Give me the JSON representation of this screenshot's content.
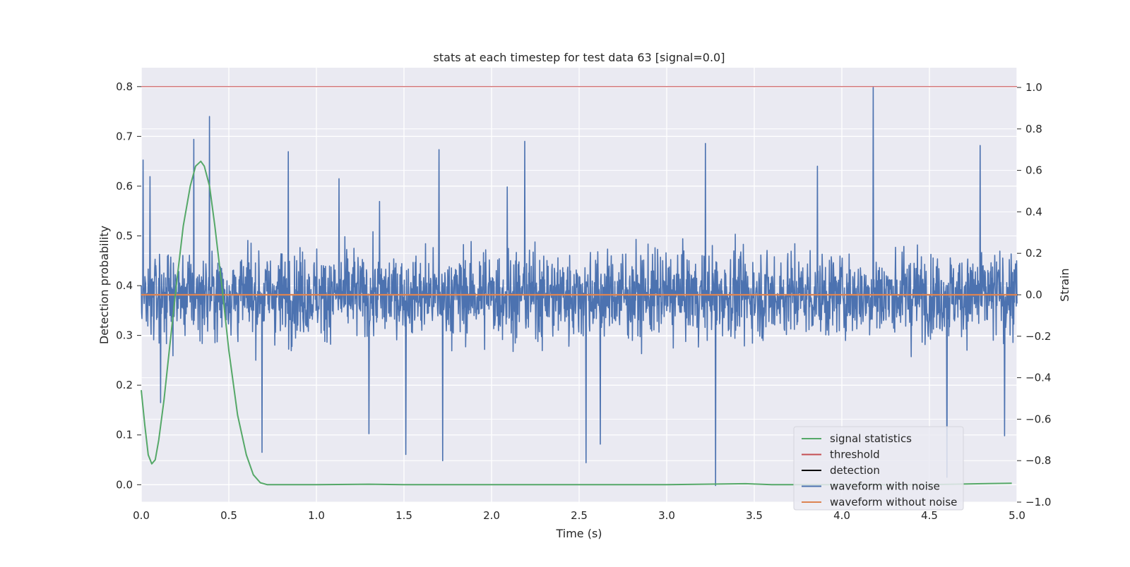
{
  "chart_data": {
    "type": "line",
    "title": "stats at each timestep for test data 63 [signal=0.0]",
    "xlabel": "Time (s)",
    "ylabel_left": "Detection probability",
    "ylabel_right": "Strain",
    "xlim": [
      0.0,
      5.0
    ],
    "ylim_left": [
      -0.035,
      0.838
    ],
    "ylim_right": [
      -1.0,
      1.0
    ],
    "grid": true,
    "legend_position": "lower-right",
    "xticks": [
      "0.0",
      "0.5",
      "1.0",
      "1.5",
      "2.0",
      "2.5",
      "3.0",
      "3.5",
      "4.0",
      "4.5",
      "5.0"
    ],
    "yticks_left": [
      "0.0",
      "0.1",
      "0.2",
      "0.3",
      "0.4",
      "0.5",
      "0.6",
      "0.7",
      "0.8"
    ],
    "yticks_right": [
      "−1.0",
      "−0.8",
      "−0.6",
      "−0.4",
      "−0.2",
      "0.0",
      "0.2",
      "0.4",
      "0.6",
      "0.8",
      "1.0"
    ],
    "colors": {
      "signal_statistics": "#55a868",
      "threshold": "#c44e52",
      "detection": "#000000",
      "waveform_with_noise": "#4c72b0",
      "waveform_without_noise": "#dd8452",
      "axes_background": "#eaeaf2",
      "grid": "#ffffff"
    },
    "legend": [
      {
        "key": "signal_statistics",
        "label": "signal statistics"
      },
      {
        "key": "threshold",
        "label": "threshold"
      },
      {
        "key": "detection",
        "label": "detection"
      },
      {
        "key": "waveform_with_noise",
        "label": "waveform with noise"
      },
      {
        "key": "waveform_without_noise",
        "label": "waveform without noise"
      }
    ],
    "series": [
      {
        "name": "signal statistics",
        "axis": "left",
        "x": [
          0.0,
          0.02,
          0.04,
          0.06,
          0.08,
          0.1,
          0.13,
          0.16,
          0.2,
          0.24,
          0.28,
          0.31,
          0.34,
          0.36,
          0.39,
          0.42,
          0.46,
          0.5,
          0.55,
          0.6,
          0.64,
          0.68,
          0.72,
          0.8,
          1.0,
          1.3,
          1.5,
          2.0,
          2.5,
          3.0,
          3.45,
          3.6,
          4.0,
          4.5,
          4.8,
          4.97
        ],
        "y": [
          0.19,
          0.12,
          0.06,
          0.042,
          0.05,
          0.09,
          0.17,
          0.27,
          0.4,
          0.52,
          0.6,
          0.64,
          0.65,
          0.64,
          0.6,
          0.52,
          0.4,
          0.27,
          0.14,
          0.06,
          0.02,
          0.004,
          0.0,
          0.0,
          0.0,
          0.001,
          0.0,
          0.0,
          0.0,
          0.0,
          0.002,
          0.0,
          0.0,
          0.0,
          0.002,
          0.003
        ]
      },
      {
        "name": "threshold",
        "axis": "left",
        "x": [
          0.0,
          5.0
        ],
        "y": [
          0.8,
          0.8
        ]
      },
      {
        "name": "waveform with noise",
        "axis": "right",
        "x": [
          0.01,
          0.05,
          0.11,
          0.3,
          0.39,
          0.69,
          0.84,
          1.13,
          1.3,
          1.36,
          1.51,
          1.7,
          1.72,
          2.09,
          2.19,
          2.54,
          2.62,
          3.22,
          3.28,
          3.86,
          4.18,
          4.6,
          4.79,
          4.93
        ],
        "y": [
          0.65,
          0.57,
          -0.52,
          0.75,
          0.86,
          -0.76,
          0.69,
          0.56,
          -0.67,
          0.45,
          -0.77,
          0.7,
          -0.8,
          0.52,
          0.74,
          -0.81,
          -0.72,
          0.73,
          -0.92,
          0.62,
          1.0,
          -0.88,
          0.72,
          -0.68
        ]
      },
      {
        "name": "waveform without noise",
        "axis": "right",
        "x": [
          0.0,
          5.0
        ],
        "y": [
          0.0,
          0.0
        ]
      }
    ]
  }
}
